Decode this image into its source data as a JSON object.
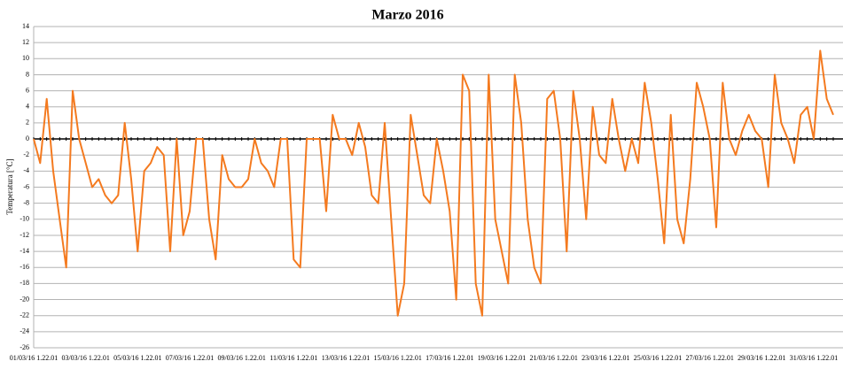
{
  "chart_data": {
    "type": "line",
    "title": "Marzo 2016",
    "y_label": "Temperatura [°C]",
    "categories": [
      "01/03/16 1.22.01",
      null,
      null,
      null,
      null,
      null,
      null,
      null,
      "03/03/16 1.22.01",
      null,
      null,
      null,
      null,
      null,
      null,
      null,
      "05/03/16 1.22.01",
      null,
      null,
      null,
      null,
      null,
      null,
      null,
      "07/03/16 1.22.01",
      null,
      null,
      null,
      null,
      null,
      null,
      null,
      "09/03/16 1.22.01",
      null,
      null,
      null,
      null,
      null,
      null,
      null,
      "11/03/16 1.22.01",
      null,
      null,
      null,
      null,
      null,
      null,
      null,
      "13/03/16 1.22.01",
      null,
      null,
      null,
      null,
      null,
      null,
      null,
      "15/03/16 1.22.01",
      null,
      null,
      null,
      null,
      null,
      null,
      null,
      "17/03/16 1.22.01",
      null,
      null,
      null,
      null,
      null,
      null,
      null,
      "19/03/16 1.22.01",
      null,
      null,
      null,
      null,
      null,
      null,
      null,
      "21/03/16 1.22.01",
      null,
      null,
      null,
      null,
      null,
      null,
      null,
      "23/03/16 1.22.01",
      null,
      null,
      null,
      null,
      null,
      null,
      null,
      "25/03/16 1.22.01",
      null,
      null,
      null,
      null,
      null,
      null,
      null,
      "27/03/16 1.22.01",
      null,
      null,
      null,
      null,
      null,
      null,
      null,
      "29/03/16 1.22.01",
      null,
      null,
      null,
      null,
      null,
      null,
      null,
      "31/03/16 1.22.01",
      null,
      null,
      null
    ],
    "values": [
      0,
      -3,
      5,
      -4,
      -10,
      -16,
      6,
      0,
      -3,
      -6,
      -5,
      -7,
      -8,
      -7,
      2,
      -5,
      -14,
      -4,
      -3,
      -1,
      -2,
      -14,
      0,
      -12,
      -9,
      0,
      0,
      -10,
      -15,
      -2,
      -5,
      -6,
      -6,
      -5,
      0,
      -3,
      -4,
      -6,
      0,
      0,
      -15,
      -16,
      0,
      0,
      0,
      -9,
      3,
      0,
      0,
      -2,
      2,
      -1,
      -7,
      -8,
      2,
      -10,
      -22,
      -18,
      3,
      -2,
      -7,
      -8,
      0,
      -4,
      -9,
      -20,
      8,
      6,
      -18,
      -22,
      8,
      -10,
      -14,
      -18,
      8,
      2,
      -10,
      -16,
      -18,
      5,
      6,
      0,
      -14,
      6,
      0,
      -10,
      4,
      -2,
      -3,
      5,
      0,
      -4,
      0,
      -3,
      7,
      2,
      -5,
      -13,
      3,
      -10,
      -13,
      -5,
      7,
      4,
      0,
      -11,
      7,
      0,
      -2,
      1,
      3,
      1,
      0,
      -6,
      8,
      2,
      0,
      -3,
      3,
      4,
      0,
      11,
      5,
      3
    ],
    "color": "#f47a1f",
    "ylim": [
      -26,
      14
    ],
    "yticks": [
      -26,
      -24,
      -22,
      -20,
      -18,
      -16,
      -14,
      -12,
      -10,
      -8,
      -6,
      -4,
      -2,
      0,
      2,
      4,
      6,
      8,
      10,
      12,
      14
    ],
    "grid": true
  }
}
